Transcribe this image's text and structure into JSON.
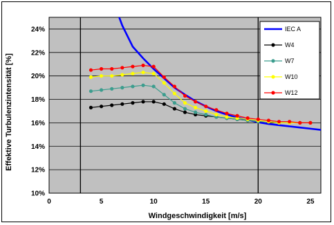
{
  "chart_data": {
    "type": "line",
    "xlabel": "Windgeschwindigkeit [m/s]",
    "ylabel": "Effektive Turbulenzintensität [%]",
    "xlim": [
      0,
      26
    ],
    "ylim": [
      10,
      25
    ],
    "x_ticks": [
      "0",
      "5",
      "10",
      "15",
      "20",
      "25"
    ],
    "y_ticks": [
      "10%",
      "12%",
      "14%",
      "16%",
      "18%",
      "20%",
      "22%",
      "24%"
    ],
    "grid": "horizontal",
    "vertical_markers": [
      3,
      20
    ],
    "plot_background": "#c0c0c0",
    "legend_position": "top-right",
    "series": [
      {
        "name": "IEC A",
        "color": "#0000ff",
        "marker": "none",
        "x": [
          6.5,
          7,
          8,
          9,
          10,
          11,
          12,
          13,
          14,
          15,
          16,
          17,
          18,
          19,
          20,
          21,
          22,
          23,
          24,
          25,
          26
        ],
        "y": [
          25.5,
          24.3,
          22.5,
          21.5,
          20.6,
          19.8,
          19.0,
          18.4,
          17.85,
          17.4,
          17.0,
          16.7,
          16.45,
          16.25,
          16.05,
          15.9,
          15.8,
          15.7,
          15.6,
          15.5,
          15.4
        ]
      },
      {
        "name": "W4",
        "color": "#000000",
        "marker": "circle",
        "x": [
          4,
          5,
          6,
          7,
          8,
          9,
          10,
          11,
          12,
          13,
          14,
          15,
          16,
          17,
          18,
          19,
          20,
          21,
          22,
          23,
          24,
          25
        ],
        "y": [
          17.3,
          17.4,
          17.5,
          17.6,
          17.7,
          17.8,
          17.8,
          17.6,
          17.2,
          16.9,
          16.7,
          16.6,
          16.5,
          16.4,
          16.3,
          16.2,
          16.1,
          16.1,
          16.0,
          16.0,
          16.0,
          16.0
        ]
      },
      {
        "name": "W7",
        "color": "#3c9d8e",
        "marker": "circle",
        "x": [
          4,
          5,
          6,
          7,
          8,
          9,
          10,
          11,
          12,
          13,
          14,
          15,
          16,
          17,
          18,
          19,
          20,
          21,
          22,
          23,
          24,
          25
        ],
        "y": [
          18.7,
          18.8,
          18.9,
          19.0,
          19.1,
          19.2,
          19.1,
          18.4,
          17.7,
          17.2,
          16.9,
          16.7,
          16.5,
          16.4,
          16.3,
          16.2,
          16.1,
          16.1,
          16.0,
          16.0,
          16.0,
          16.0
        ]
      },
      {
        "name": "W10",
        "color": "#ffff00",
        "marker": "circle",
        "x": [
          4,
          5,
          6,
          7,
          8,
          9,
          10,
          11,
          12,
          13,
          14,
          15,
          16,
          17,
          18,
          19,
          20,
          21,
          22,
          23,
          24,
          25
        ],
        "y": [
          19.9,
          20.0,
          20.0,
          20.1,
          20.2,
          20.3,
          20.2,
          19.4,
          18.5,
          17.7,
          17.3,
          17.0,
          16.7,
          16.5,
          16.4,
          16.3,
          16.2,
          16.1,
          16.0,
          16.0,
          16.0,
          16.0
        ]
      },
      {
        "name": "W12",
        "color": "#ff0000",
        "marker": "circle",
        "x": [
          4,
          5,
          6,
          7,
          8,
          9,
          10,
          11,
          12,
          13,
          14,
          15,
          16,
          17,
          18,
          19,
          20,
          21,
          22,
          23,
          24,
          25
        ],
        "y": [
          20.5,
          20.6,
          20.6,
          20.7,
          20.8,
          20.9,
          20.8,
          19.9,
          19.1,
          18.3,
          17.8,
          17.4,
          17.1,
          16.8,
          16.6,
          16.4,
          16.3,
          16.2,
          16.1,
          16.1,
          16.0,
          16.0
        ]
      }
    ]
  }
}
